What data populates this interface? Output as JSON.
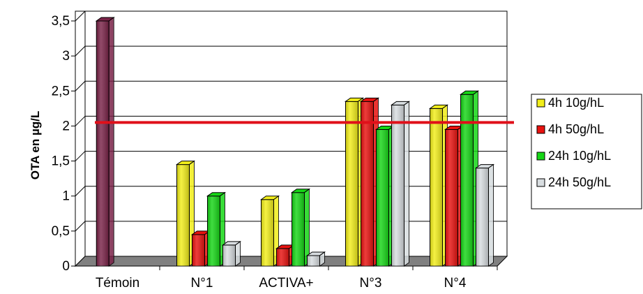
{
  "chart_data": {
    "type": "bar",
    "title": "",
    "xlabel": "",
    "ylabel": "OTA en µg/L",
    "ylim": [
      0,
      3.5
    ],
    "yticks": [
      "0",
      "0,5",
      "1",
      "1,5",
      "2",
      "2,5",
      "3",
      "3,5"
    ],
    "grid": true,
    "legend_position": "right",
    "categories": [
      "Témoin",
      "N°1",
      "ACTIVA+",
      "N°3",
      "N°4"
    ],
    "control": {
      "category": "Témoin",
      "value": 3.5,
      "color": "#7a2348"
    },
    "series": [
      {
        "name": "4h 10g/hL",
        "color": "#f2ee1a",
        "values": [
          null,
          1.45,
          0.95,
          2.35,
          2.25
        ]
      },
      {
        "name": "4h 50g/hL",
        "color": "#e8120f",
        "values": [
          null,
          0.45,
          0.25,
          2.35,
          1.95
        ]
      },
      {
        "name": "24h 10g/hL",
        "color": "#16d616",
        "values": [
          null,
          1.0,
          1.05,
          1.95,
          2.45
        ]
      },
      {
        "name": "24h 50g/hL",
        "color": "#d8dde0",
        "values": [
          null,
          0.3,
          0.15,
          2.3,
          1.4
        ]
      }
    ],
    "reference_line": {
      "value": 2.05,
      "color": "#e0101a"
    }
  }
}
